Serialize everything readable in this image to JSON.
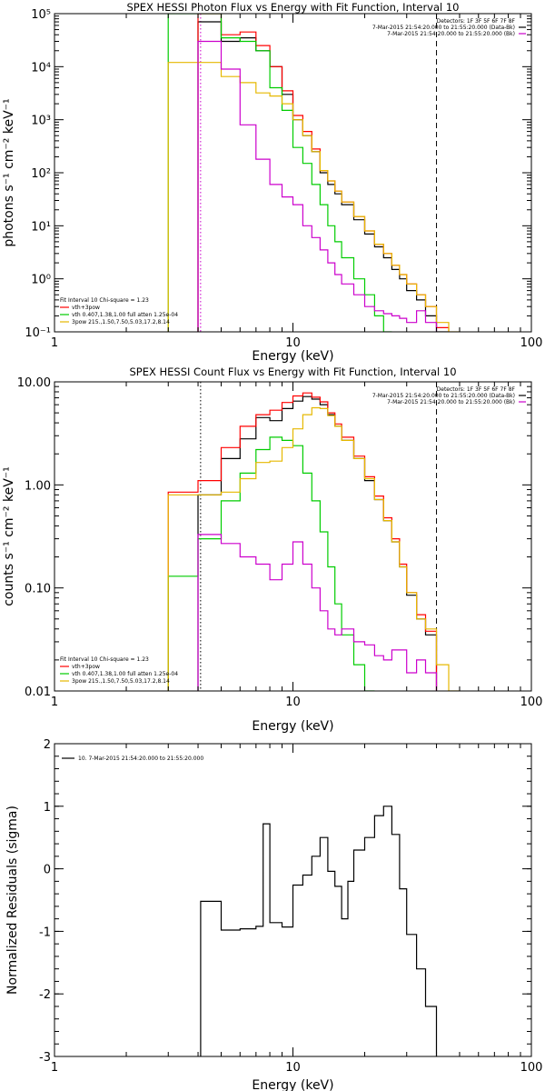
{
  "chart_data": [
    {
      "type": "line",
      "title": "SPEX HESSI Photon Flux vs Energy with Fit Function, Interval 10",
      "xlabel": "Energy (keV)",
      "ylabel": "photons s⁻¹ cm⁻² keV⁻¹",
      "xscale": "log",
      "yscale": "log",
      "xlim": [
        1,
        100
      ],
      "ylim": [
        0.1,
        100000
      ],
      "xticks": [
        "1",
        "10",
        "100"
      ],
      "yticks": [
        "10⁻¹",
        "10⁰",
        "10¹",
        "10²",
        "10³",
        "10⁴",
        "10⁵"
      ],
      "ytick_values": [
        0.1,
        1,
        10,
        100,
        1000,
        10000,
        100000
      ],
      "top_right_text": [
        "Detectors: 1F 3F 5F 6F 7F 8F",
        "7-Mar-2015 21:54:20.000 to 21:55:20.000 (Data-Bk)",
        "7-Mar-2015 21:54:20.000 to 21:55:20.000 (Bk)"
      ],
      "legend_left": [
        "Fit Interval 10   Chi-square = 1.23",
        "vth+3pow",
        "vth 0.407,1.38,1.00  full atten 1.25e-04",
        "3pow 215.,1.50,7.50,5.03,17.2,8.14"
      ],
      "vlines": [
        {
          "x": 4.1,
          "style": "dotted",
          "color": "#cc00cc"
        },
        {
          "x": 40,
          "style": "dashed",
          "color": "#000000"
        }
      ],
      "edges": [
        3,
        4,
        5,
        6,
        7,
        8,
        9,
        10,
        11,
        12,
        13,
        14,
        15,
        16,
        18,
        20,
        22,
        24,
        26,
        28,
        30,
        33,
        36,
        40,
        45,
        50
      ],
      "series": [
        {
          "color": "#000000",
          "values": [
            null,
            70000,
            30000,
            35000,
            20000,
            10000,
            3000,
            1000,
            500,
            250,
            100,
            60,
            40,
            25,
            13,
            7,
            4,
            2.5,
            1.5,
            1,
            0.6,
            0.4,
            0.2,
            0.1,
            null
          ]
        },
        {
          "color": "#ff0000",
          "values": [
            null,
            100000,
            40000,
            45000,
            25000,
            10000,
            3500,
            1200,
            600,
            280,
            110,
            70,
            45,
            28,
            15,
            8,
            4.5,
            3,
            1.8,
            1.2,
            0.8,
            0.5,
            0.3,
            0.12,
            null
          ]
        },
        {
          "color": "#00cc00",
          "values": [
            100000,
            100000,
            35000,
            30000,
            20000,
            4000,
            1500,
            300,
            150,
            60,
            25,
            10,
            5,
            2.5,
            1,
            0.5,
            0.2,
            0.1,
            null,
            null,
            null,
            null,
            null,
            null,
            null
          ]
        },
        {
          "color": "#e6b800",
          "values": [
            12000,
            12000,
            6500,
            5000,
            3200,
            2800,
            2000,
            1000,
            500,
            250,
            110,
            70,
            45,
            28,
            15,
            8,
            4.5,
            3,
            1.8,
            1.2,
            0.8,
            0.5,
            0.3,
            0.15,
            0.1
          ]
        },
        {
          "color": "#cc00cc",
          "values": [
            null,
            30000,
            9000,
            800,
            180,
            60,
            35,
            25,
            10,
            6,
            3.5,
            2,
            1.2,
            0.8,
            0.5,
            0.3,
            0.25,
            0.22,
            0.2,
            0.18,
            0.15,
            0.25,
            0.15,
            null,
            null
          ]
        }
      ]
    },
    {
      "type": "line",
      "title": "SPEX HESSI Count Flux vs Energy with Fit Function, Interval 10",
      "xlabel": "Energy (keV)",
      "ylabel": "counts s⁻¹ cm⁻² keV⁻¹",
      "xscale": "log",
      "yscale": "log",
      "xlim": [
        1,
        100
      ],
      "ylim": [
        0.01,
        10
      ],
      "xticks": [
        "1",
        "10",
        "100"
      ],
      "yticks": [
        "0.01",
        "0.10",
        "1.00",
        "10.00"
      ],
      "ytick_values": [
        0.01,
        0.1,
        1,
        10
      ],
      "top_right_text": [
        "Detectors: 1F 3F 5F 6F 7F 8F",
        "7-Mar-2015 21:54:20.000 to 21:55:20.000 (Data-Bk)",
        "7-Mar-2015 21:54:20.000 to 21:55:20.000 (Bk)"
      ],
      "legend_left": [
        "Fit Interval 10   Chi-square = 1.23",
        "vth+3pow",
        "vth 0.407,1.38,1.00  full atten 1.25e-04",
        "3pow 215.,1.50,7.50,5.03,17.2,8.14"
      ],
      "vlines": [
        {
          "x": 4.1,
          "style": "dotted",
          "color": "#000000"
        },
        {
          "x": 40,
          "style": "dashed",
          "color": "#000000"
        }
      ],
      "edges": [
        3,
        4,
        5,
        6,
        7,
        8,
        9,
        10,
        11,
        12,
        13,
        14,
        15,
        16,
        18,
        20,
        22,
        24,
        26,
        28,
        30,
        33,
        36,
        40,
        45,
        50
      ],
      "series": [
        {
          "color": "#000000",
          "values": [
            null,
            0.8,
            1.8,
            2.8,
            4.5,
            4.2,
            5.5,
            6.5,
            7.2,
            6.8,
            6,
            4.8,
            3.7,
            2.7,
            1.8,
            1.1,
            0.72,
            0.45,
            0.28,
            0.16,
            0.085,
            0.05,
            0.035,
            null,
            null
          ]
        },
        {
          "color": "#ff0000",
          "values": [
            0.85,
            1.1,
            2.3,
            3.7,
            4.8,
            5.3,
            6.3,
            7.3,
            7.8,
            7.1,
            6.4,
            5,
            3.9,
            2.9,
            1.9,
            1.2,
            0.78,
            0.48,
            0.3,
            0.17,
            0.09,
            0.055,
            0.038,
            null,
            null
          ]
        },
        {
          "color": "#00cc00",
          "values": [
            0.13,
            0.3,
            0.7,
            1.3,
            2.2,
            2.9,
            2.7,
            2.4,
            1.3,
            0.7,
            0.35,
            0.16,
            0.07,
            0.035,
            0.018,
            0.01,
            null,
            null,
            null,
            null,
            null,
            null,
            null,
            null,
            null
          ]
        },
        {
          "color": "#e6b800",
          "values": [
            0.8,
            0.8,
            0.85,
            1.15,
            1.65,
            1.7,
            2.3,
            3.5,
            4.8,
            5.6,
            5.5,
            4.7,
            3.7,
            2.7,
            1.8,
            1.15,
            0.72,
            0.45,
            0.28,
            0.16,
            0.09,
            0.05,
            0.04,
            0.018,
            0.01
          ]
        },
        {
          "color": "#cc00cc",
          "values": [
            null,
            0.33,
            0.27,
            0.2,
            0.17,
            0.12,
            0.17,
            0.28,
            0.17,
            0.1,
            0.06,
            0.04,
            0.035,
            0.04,
            0.03,
            0.028,
            0.022,
            0.02,
            0.025,
            0.025,
            0.015,
            0.02,
            0.015,
            null,
            null
          ]
        }
      ]
    },
    {
      "type": "line",
      "title": "",
      "xlabel": "Energy (keV)",
      "ylabel": "Normalized Residuals (sigma)",
      "xscale": "log",
      "yscale": "linear",
      "xlim": [
        1,
        100
      ],
      "ylim": [
        -3,
        2
      ],
      "xticks": [
        "1",
        "10",
        "100"
      ],
      "yticks": [
        "-3",
        "-2",
        "-1",
        "0",
        "1",
        "2"
      ],
      "ytick_values": [
        -3,
        -2,
        -1,
        0,
        1,
        2
      ],
      "legend": "10.  7-Mar-2015 21:54:20.000 to 21:55:20.000",
      "edges": [
        4.1,
        5,
        6,
        7,
        7.5,
        8,
        9,
        10,
        11,
        12,
        13,
        14,
        15,
        16,
        17,
        18,
        20,
        22,
        24,
        26,
        28,
        30,
        33,
        36,
        40
      ],
      "series": [
        {
          "color": "#000000",
          "values": [
            -0.52,
            -0.98,
            -0.96,
            -0.92,
            0.72,
            -0.86,
            -0.93,
            -0.26,
            -0.1,
            0.2,
            0.5,
            -0.04,
            -0.28,
            -0.8,
            -0.2,
            0.3,
            0.5,
            0.85,
            1.0,
            0.55,
            -0.32,
            -1.05,
            -1.6,
            -2.2
          ]
        }
      ]
    }
  ]
}
